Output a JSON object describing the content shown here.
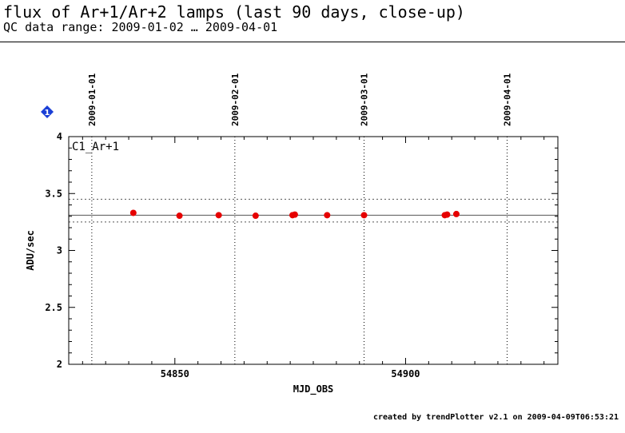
{
  "header": {
    "title": "flux of Ar+1/Ar+2 lamps (last 90 days, close-up)",
    "subtitle": "QC data range: 2009-01-02 … 2009-04-01"
  },
  "footer": {
    "text": "created by trendPlotter v2.1 on 2009-04-09T06:53:21"
  },
  "marker": {
    "label": "1",
    "color": "#1a3fd6"
  },
  "chart_data": {
    "type": "scatter",
    "panel_label": "C1_Ar+1",
    "xlabel": "MJD_OBS",
    "ylabel": "ADU/sec",
    "xlim": [
      54827,
      54933
    ],
    "ylim": [
      2,
      4
    ],
    "x_ticks": [
      54850,
      54900
    ],
    "y_ticks": [
      2,
      2.5,
      3,
      3.5,
      4
    ],
    "y_tick_labels": [
      "2",
      "2.5",
      "3",
      "3.5",
      "4"
    ],
    "date_markers": [
      {
        "x": 54832,
        "label": "2009-01-01"
      },
      {
        "x": 54863,
        "label": "2009-02-01"
      },
      {
        "x": 54891,
        "label": "2009-03-01"
      },
      {
        "x": 54922,
        "label": "2009-04-01"
      }
    ],
    "mean_line": 3.31,
    "limits": [
      3.25,
      3.45
    ],
    "point_color": "#e60000",
    "series": [
      {
        "x": [
          54841,
          54851,
          54859.5,
          54867.5,
          54875.5,
          54876,
          54883,
          54891,
          54908.5,
          54909,
          54911
        ],
        "y": [
          3.33,
          3.305,
          3.31,
          3.305,
          3.31,
          3.315,
          3.31,
          3.31,
          3.31,
          3.315,
          3.32
        ]
      }
    ]
  }
}
